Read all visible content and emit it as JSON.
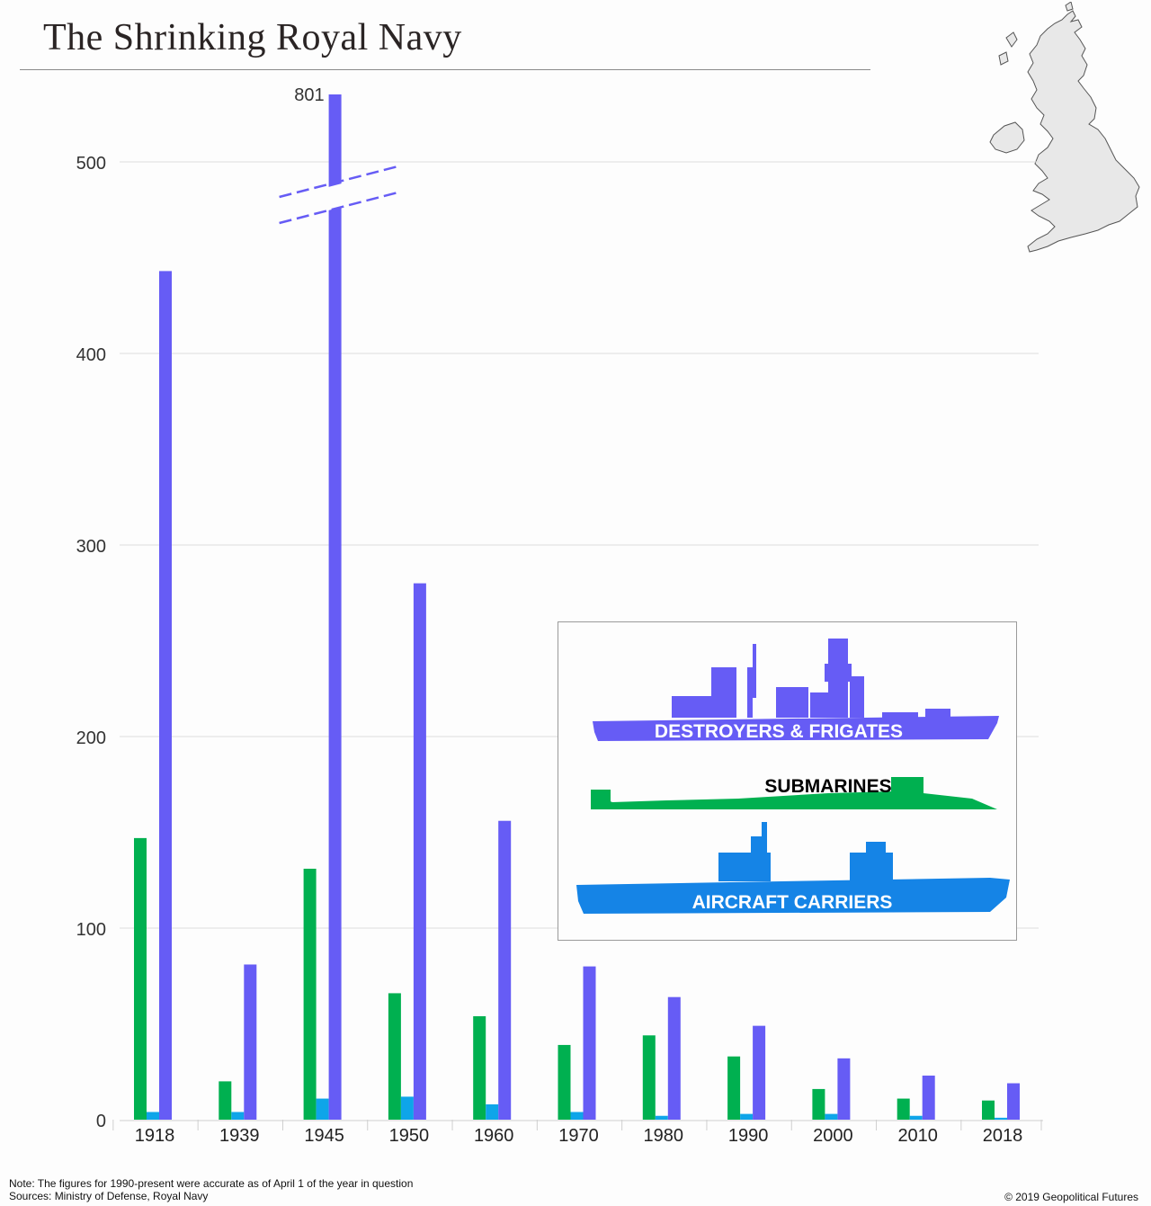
{
  "title": "The Shrinking Royal Navy",
  "note": "Note: The figures for 1990-present were accurate as of April 1 of the year in question",
  "sources": "Sources: Ministry of Defense, Royal Navy",
  "copyright": "© 2019 Geopolitical Futures",
  "colors": {
    "submarines": "#00b050",
    "aircraft_carriers": "#0ea5e9",
    "destroyers_frigates": "#665cf5",
    "grid": "#dddddd",
    "legend_carriers_ship": "#1584e6"
  },
  "legend": {
    "destroyers": "DESTROYERS & FRIGATES",
    "submarines": "SUBMARINES",
    "carriers": "AIRCRAFT CARRIERS"
  },
  "chart_data": {
    "type": "bar",
    "categories": [
      "1918",
      "1939",
      "1945",
      "1950",
      "1960",
      "1970",
      "1980",
      "1990",
      "2000",
      "2010",
      "2018"
    ],
    "series": [
      {
        "name": "SUBMARINES",
        "key": "submarines",
        "values": [
          147,
          20,
          131,
          66,
          54,
          39,
          44,
          33,
          16,
          11,
          10
        ]
      },
      {
        "name": "AIRCRAFT CARRIERS",
        "key": "aircraft_carriers",
        "values": [
          4,
          4,
          11,
          12,
          8,
          4,
          2,
          3,
          3,
          2,
          1
        ]
      },
      {
        "name": "DESTROYERS & FRIGATES",
        "key": "destroyers_frigates",
        "values": [
          443,
          81,
          801,
          280,
          156,
          80,
          64,
          49,
          32,
          23,
          19
        ]
      }
    ],
    "ylim": [
      0,
      500
    ],
    "yticks": [
      0,
      100,
      200,
      300,
      400,
      500
    ],
    "axis_break": true,
    "outlier_label": "801",
    "legend_position": "inset-right",
    "grid": true
  }
}
